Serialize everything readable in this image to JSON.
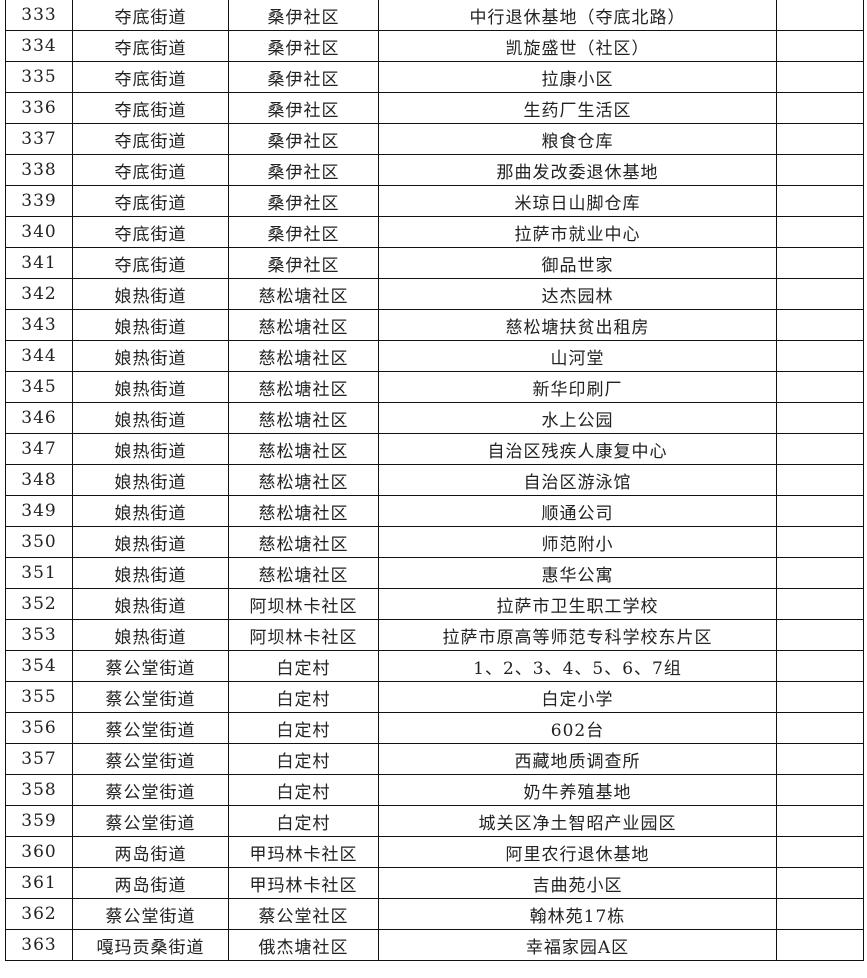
{
  "rows": [
    [
      "333",
      "夺底街道",
      "桑伊社区",
      "中行退休基地（夺底北路）",
      ""
    ],
    [
      "334",
      "夺底街道",
      "桑伊社区",
      "凯旋盛世（社区）",
      ""
    ],
    [
      "335",
      "夺底街道",
      "桑伊社区",
      "拉康小区",
      ""
    ],
    [
      "336",
      "夺底街道",
      "桑伊社区",
      "生药厂生活区",
      ""
    ],
    [
      "337",
      "夺底街道",
      "桑伊社区",
      "粮食仓库",
      ""
    ],
    [
      "338",
      "夺底街道",
      "桑伊社区",
      "那曲发改委退休基地",
      ""
    ],
    [
      "339",
      "夺底街道",
      "桑伊社区",
      "米琼日山脚仓库",
      ""
    ],
    [
      "340",
      "夺底街道",
      "桑伊社区",
      "拉萨市就业中心",
      ""
    ],
    [
      "341",
      "夺底街道",
      "桑伊社区",
      "御品世家",
      ""
    ],
    [
      "342",
      "娘热街道",
      "慈松塘社区",
      "达杰园林",
      ""
    ],
    [
      "343",
      "娘热街道",
      "慈松塘社区",
      "慈松塘扶贫出租房",
      ""
    ],
    [
      "344",
      "娘热街道",
      "慈松塘社区",
      "山河堂",
      ""
    ],
    [
      "345",
      "娘热街道",
      "慈松塘社区",
      "新华印刷厂",
      ""
    ],
    [
      "346",
      "娘热街道",
      "慈松塘社区",
      "水上公园",
      ""
    ],
    [
      "347",
      "娘热街道",
      "慈松塘社区",
      "自治区残疾人康复中心",
      ""
    ],
    [
      "348",
      "娘热街道",
      "慈松塘社区",
      "自治区游泳馆",
      ""
    ],
    [
      "349",
      "娘热街道",
      "慈松塘社区",
      "顺通公司",
      ""
    ],
    [
      "350",
      "娘热街道",
      "慈松塘社区",
      "师范附小",
      ""
    ],
    [
      "351",
      "娘热街道",
      "慈松塘社区",
      "惠华公寓",
      ""
    ],
    [
      "352",
      "娘热街道",
      "阿坝林卡社区",
      "拉萨市卫生职工学校",
      ""
    ],
    [
      "353",
      "娘热街道",
      "阿坝林卡社区",
      "拉萨市原高等师范专科学校东片区",
      ""
    ],
    [
      "354",
      "蔡公堂街道",
      "白定村",
      "1、2、3、4、5、6、7组",
      ""
    ],
    [
      "355",
      "蔡公堂街道",
      "白定村",
      "白定小学",
      ""
    ],
    [
      "356",
      "蔡公堂街道",
      "白定村",
      "602台",
      ""
    ],
    [
      "357",
      "蔡公堂街道",
      "白定村",
      "西藏地质调查所",
      ""
    ],
    [
      "358",
      "蔡公堂街道",
      "白定村",
      "奶牛养殖基地",
      ""
    ],
    [
      "359",
      "蔡公堂街道",
      "白定村",
      "城关区净土智昭产业园区",
      ""
    ],
    [
      "360",
      "两岛街道",
      "甲玛林卡社区",
      "阿里农行退休基地",
      ""
    ],
    [
      "361",
      "两岛街道",
      "甲玛林卡社区",
      "吉曲苑小区",
      ""
    ],
    [
      "362",
      "蔡公堂街道",
      "蔡公堂社区",
      "翰林苑17栋",
      ""
    ],
    [
      "363",
      "嘎玛贡桑街道",
      "俄杰塘社区",
      "幸福家园A区",
      ""
    ]
  ]
}
